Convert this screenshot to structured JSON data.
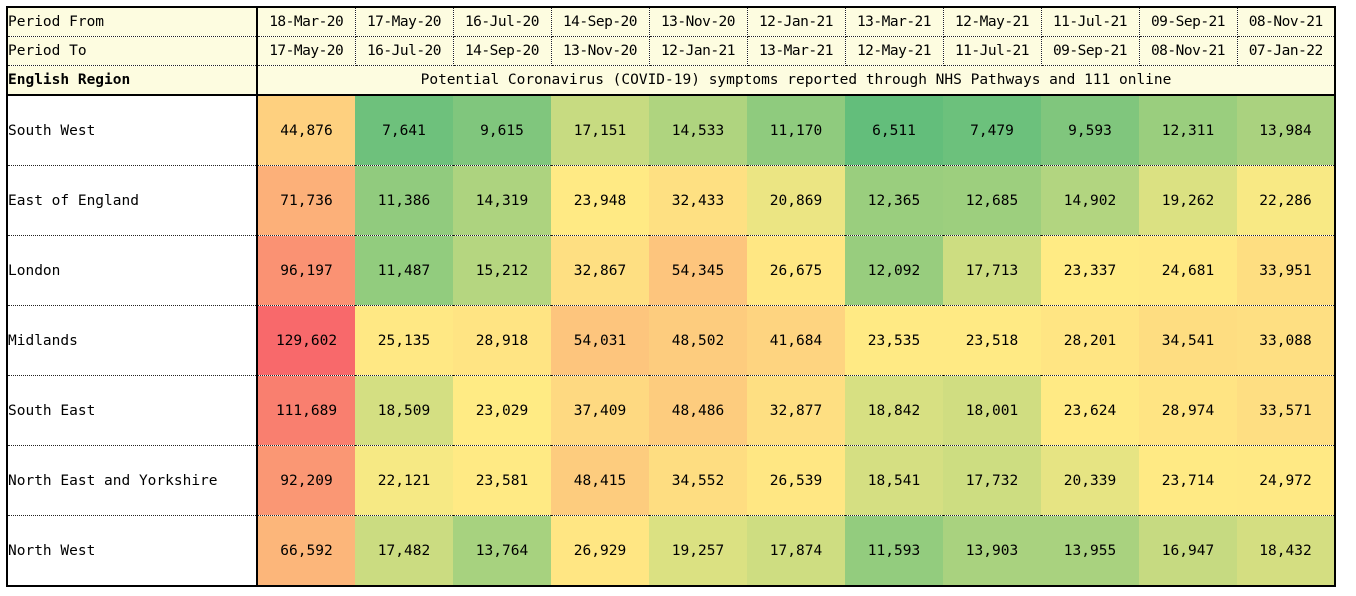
{
  "table": {
    "period_from_label": "Period From",
    "period_to_label": "Period To",
    "region_header": "English Region",
    "title": "Potential Coronavirus (COVID-19) symptoms reported through NHS Pathways and 111 online",
    "period_from": [
      "18-Mar-20",
      "17-May-20",
      "16-Jul-20",
      "14-Sep-20",
      "13-Nov-20",
      "12-Jan-21",
      "13-Mar-21",
      "12-May-21",
      "11-Jul-21",
      "09-Sep-21",
      "08-Nov-21"
    ],
    "period_to": [
      "17-May-20",
      "16-Jul-20",
      "14-Sep-20",
      "13-Nov-20",
      "12-Jan-21",
      "13-Mar-21",
      "12-May-21",
      "11-Jul-21",
      "09-Sep-21",
      "08-Nov-21",
      "07-Jan-22"
    ],
    "rows": [
      {
        "region": "South West",
        "values": [
          "44,876",
          "7,641",
          "9,615",
          "17,151",
          "14,533",
          "11,170",
          "6,511",
          "7,479",
          "9,593",
          "12,311",
          "13,984"
        ]
      },
      {
        "region": "East of England",
        "values": [
          "71,736",
          "11,386",
          "14,319",
          "23,948",
          "32,433",
          "20,869",
          "12,365",
          "12,685",
          "14,902",
          "19,262",
          "22,286"
        ]
      },
      {
        "region": "London",
        "values": [
          "96,197",
          "11,487",
          "15,212",
          "32,867",
          "54,345",
          "26,675",
          "12,092",
          "17,713",
          "23,337",
          "24,681",
          "33,951"
        ]
      },
      {
        "region": "Midlands",
        "values": [
          "129,602",
          "25,135",
          "28,918",
          "54,031",
          "48,502",
          "41,684",
          "23,535",
          "23,518",
          "28,201",
          "34,541",
          "33,088"
        ]
      },
      {
        "region": "South East",
        "values": [
          "111,689",
          "18,509",
          "23,029",
          "37,409",
          "48,486",
          "32,877",
          "18,842",
          "18,001",
          "23,624",
          "28,974",
          "33,571"
        ]
      },
      {
        "region": "North East and Yorkshire",
        "values": [
          "92,209",
          "22,121",
          "23,581",
          "48,415",
          "34,552",
          "26,539",
          "18,541",
          "17,732",
          "20,339",
          "23,714",
          "24,972"
        ]
      },
      {
        "region": "North West",
        "values": [
          "66,592",
          "17,482",
          "13,764",
          "26,929",
          "19,257",
          "17,874",
          "11,593",
          "13,903",
          "13,955",
          "16,947",
          "18,432"
        ]
      }
    ]
  },
  "colors": {
    "low": "#63be7b",
    "mid": "#ffeb84",
    "high": "#f8696b"
  }
}
